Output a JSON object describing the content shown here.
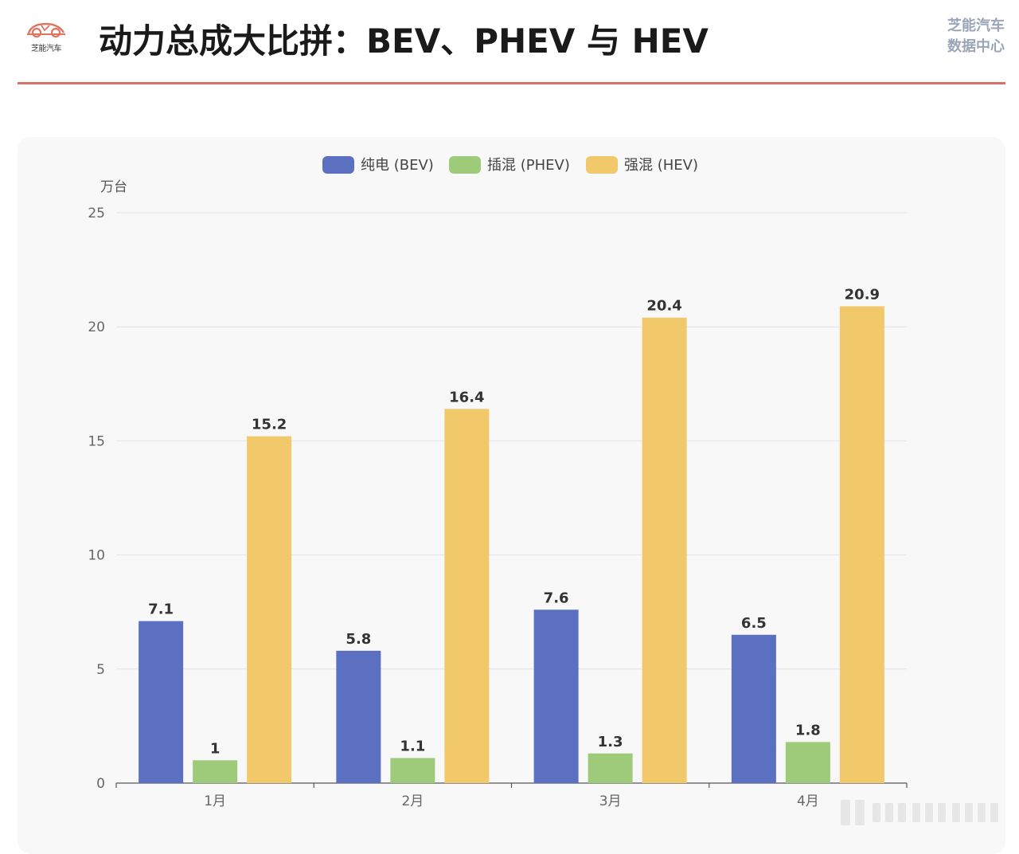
{
  "header": {
    "logo_text": "芝能汽车",
    "title": "动力总成大比拼：BEV、PHEV 与 HEV",
    "brand_line1": "芝能汽车",
    "brand_line2": "数据中心"
  },
  "colors": {
    "accent_divider": "#d9736a",
    "bev": "#5b70c1",
    "phev": "#9dcb7a",
    "hev": "#f2c96a",
    "logo": "#e0745f"
  },
  "chart_data": {
    "type": "bar",
    "categories": [
      "1月",
      "2月",
      "3月",
      "4月"
    ],
    "series": [
      {
        "name": "纯电 (BEV)",
        "values": [
          7.1,
          5.8,
          7.6,
          6.5
        ],
        "labels": [
          "7.1",
          "5.8",
          "7.6",
          "6.5"
        ]
      },
      {
        "name": "插混 (PHEV)",
        "values": [
          1,
          1.1,
          1.3,
          1.8
        ],
        "labels": [
          "1",
          "1.1",
          "1.3",
          "1.8"
        ]
      },
      {
        "name": "强混 (HEV)",
        "values": [
          15.2,
          16.4,
          20.4,
          20.9
        ],
        "labels": [
          "15.2",
          "16.4",
          "20.4",
          "20.9"
        ]
      }
    ],
    "ylabel": "万台",
    "ylim": [
      0,
      25
    ],
    "yticks": [
      0,
      5,
      10,
      15,
      20,
      25
    ],
    "legend_position": "top-center",
    "grid": true
  }
}
